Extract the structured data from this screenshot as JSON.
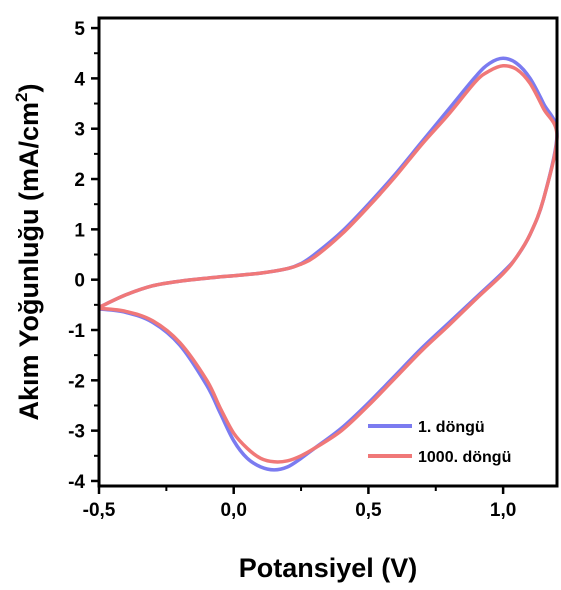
{
  "chart_data": {
    "type": "line",
    "xlabel": "Potansiyel (V)",
    "ylabel": "Akım Yoğunluğu (mA/cm²)",
    "ylabel_main": "Akım Yoğunluğu (mA/cm",
    "ylabel_sup": "2",
    "ylabel_close": ")",
    "xlim": [
      -0.5,
      1.2
    ],
    "ylim": [
      -4.1,
      5.2
    ],
    "xticks": [
      -0.5,
      0.0,
      0.5,
      1.0
    ],
    "xtick_labels": [
      "-0,5",
      "0,0",
      "0,5",
      "1,0"
    ],
    "yticks": [
      -4,
      -3,
      -2,
      -1,
      0,
      1,
      2,
      3,
      4,
      5
    ],
    "ytick_labels": [
      "-4",
      "-3",
      "-2",
      "-1",
      "0",
      "1",
      "2",
      "3",
      "4",
      "5"
    ],
    "grid": false,
    "legend_position": "bottom-right",
    "series": [
      {
        "name": "1. döngü",
        "color": "#7b7bf0",
        "x": [
          -0.5,
          -0.4,
          -0.3,
          -0.2,
          -0.1,
          0.0,
          0.1,
          0.2,
          0.25,
          0.3,
          0.4,
          0.5,
          0.6,
          0.7,
          0.8,
          0.9,
          0.95,
          1.0,
          1.05,
          1.1,
          1.15,
          1.2,
          1.15,
          1.1,
          1.05,
          1.0,
          0.9,
          0.8,
          0.7,
          0.6,
          0.5,
          0.4,
          0.3,
          0.25,
          0.2,
          0.15,
          0.1,
          0.05,
          0.0,
          -0.05,
          -0.1,
          -0.2,
          -0.3,
          -0.4,
          -0.5
        ],
        "y": [
          -0.55,
          -0.3,
          -0.12,
          -0.03,
          0.03,
          0.08,
          0.13,
          0.22,
          0.32,
          0.5,
          0.95,
          1.5,
          2.1,
          2.75,
          3.4,
          4.05,
          4.3,
          4.4,
          4.3,
          4.0,
          3.5,
          2.9,
          1.6,
          0.9,
          0.45,
          0.15,
          -0.35,
          -0.85,
          -1.35,
          -1.9,
          -2.45,
          -2.95,
          -3.35,
          -3.55,
          -3.72,
          -3.78,
          -3.72,
          -3.55,
          -3.2,
          -2.65,
          -2.1,
          -1.3,
          -0.85,
          -0.65,
          -0.58
        ]
      },
      {
        "name": "1000. döngü",
        "color": "#f07878",
        "x": [
          -0.5,
          -0.4,
          -0.3,
          -0.2,
          -0.1,
          0.0,
          0.1,
          0.2,
          0.25,
          0.3,
          0.4,
          0.5,
          0.6,
          0.7,
          0.8,
          0.9,
          0.95,
          1.0,
          1.05,
          1.1,
          1.15,
          1.2,
          1.15,
          1.1,
          1.05,
          1.0,
          0.9,
          0.8,
          0.7,
          0.6,
          0.5,
          0.4,
          0.3,
          0.25,
          0.2,
          0.15,
          0.1,
          0.05,
          0.0,
          -0.05,
          -0.1,
          -0.2,
          -0.3,
          -0.4,
          -0.5
        ],
        "y": [
          -0.55,
          -0.3,
          -0.12,
          -0.03,
          0.03,
          0.08,
          0.13,
          0.22,
          0.31,
          0.45,
          0.9,
          1.45,
          2.05,
          2.7,
          3.3,
          3.95,
          4.15,
          4.25,
          4.18,
          3.9,
          3.4,
          2.85,
          1.6,
          0.9,
          0.45,
          0.12,
          -0.38,
          -0.9,
          -1.4,
          -1.95,
          -2.5,
          -3.0,
          -3.35,
          -3.5,
          -3.6,
          -3.62,
          -3.55,
          -3.35,
          -3.05,
          -2.55,
          -2.0,
          -1.25,
          -0.82,
          -0.63,
          -0.57
        ]
      }
    ]
  }
}
